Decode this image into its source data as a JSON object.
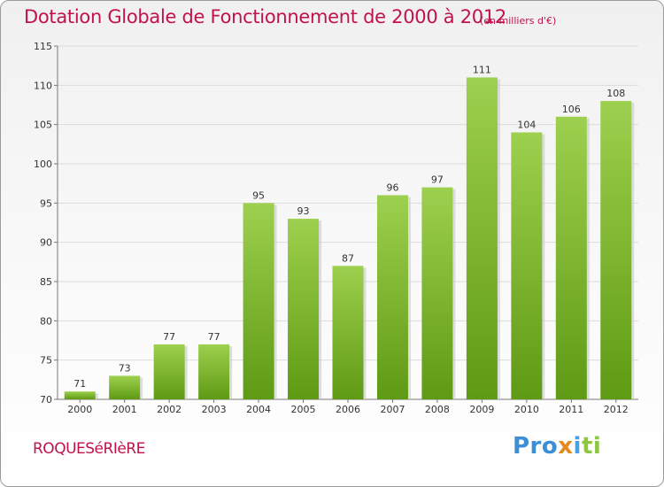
{
  "title": "Dotation Globale de Fonctionnement de 2000 à 2012",
  "subtitle": "(en milliers d'€)",
  "commune": "ROQUESéRIèRE",
  "brand": {
    "p1": "Pro",
    "p2": "x",
    "p3": "i",
    "p4": "ti"
  },
  "colors": {
    "title": "#c0134a",
    "bar_top": "#9dd04e",
    "bar_bottom": "#5f9a14"
  },
  "chart_data": {
    "type": "bar",
    "title": "Dotation Globale de Fonctionnement de 2000 à 2012",
    "subtitle": "(en milliers d'€)",
    "categories": [
      "2000",
      "2001",
      "2002",
      "2003",
      "2004",
      "2005",
      "2006",
      "2007",
      "2008",
      "2009",
      "2010",
      "2011",
      "2012"
    ],
    "values": [
      71,
      73,
      77,
      77,
      95,
      93,
      87,
      96,
      97,
      111,
      104,
      106,
      108
    ],
    "ylim": [
      70,
      115
    ],
    "yticks": [
      70,
      75,
      80,
      85,
      90,
      95,
      100,
      105,
      110,
      115
    ],
    "grid": true,
    "legend": "none"
  }
}
